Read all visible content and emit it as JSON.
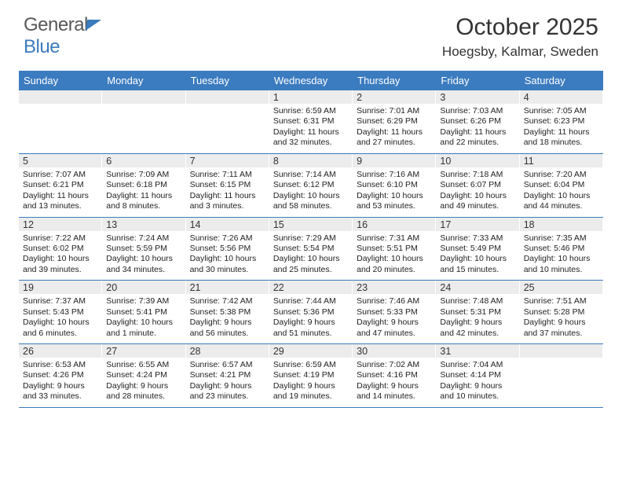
{
  "logo": {
    "text1": "General",
    "text2": "Blue"
  },
  "title": "October 2025",
  "location": "Hoegsby, Kalmar, Sweden",
  "colors": {
    "header_bg": "#3b7bbf",
    "daynum_bg": "#ececec",
    "page_bg": "#ffffff",
    "text": "#333333",
    "logo_gray": "#58585a",
    "logo_blue": "#3b7bbf"
  },
  "day_names": [
    "Sunday",
    "Monday",
    "Tuesday",
    "Wednesday",
    "Thursday",
    "Friday",
    "Saturday"
  ],
  "weeks": [
    [
      {
        "n": "",
        "lines": []
      },
      {
        "n": "",
        "lines": []
      },
      {
        "n": "",
        "lines": []
      },
      {
        "n": "1",
        "lines": [
          "Sunrise: 6:59 AM",
          "Sunset: 6:31 PM",
          "Daylight: 11 hours",
          "and 32 minutes."
        ]
      },
      {
        "n": "2",
        "lines": [
          "Sunrise: 7:01 AM",
          "Sunset: 6:29 PM",
          "Daylight: 11 hours",
          "and 27 minutes."
        ]
      },
      {
        "n": "3",
        "lines": [
          "Sunrise: 7:03 AM",
          "Sunset: 6:26 PM",
          "Daylight: 11 hours",
          "and 22 minutes."
        ]
      },
      {
        "n": "4",
        "lines": [
          "Sunrise: 7:05 AM",
          "Sunset: 6:23 PM",
          "Daylight: 11 hours",
          "and 18 minutes."
        ]
      }
    ],
    [
      {
        "n": "5",
        "lines": [
          "Sunrise: 7:07 AM",
          "Sunset: 6:21 PM",
          "Daylight: 11 hours",
          "and 13 minutes."
        ]
      },
      {
        "n": "6",
        "lines": [
          "Sunrise: 7:09 AM",
          "Sunset: 6:18 PM",
          "Daylight: 11 hours",
          "and 8 minutes."
        ]
      },
      {
        "n": "7",
        "lines": [
          "Sunrise: 7:11 AM",
          "Sunset: 6:15 PM",
          "Daylight: 11 hours",
          "and 3 minutes."
        ]
      },
      {
        "n": "8",
        "lines": [
          "Sunrise: 7:14 AM",
          "Sunset: 6:12 PM",
          "Daylight: 10 hours",
          "and 58 minutes."
        ]
      },
      {
        "n": "9",
        "lines": [
          "Sunrise: 7:16 AM",
          "Sunset: 6:10 PM",
          "Daylight: 10 hours",
          "and 53 minutes."
        ]
      },
      {
        "n": "10",
        "lines": [
          "Sunrise: 7:18 AM",
          "Sunset: 6:07 PM",
          "Daylight: 10 hours",
          "and 49 minutes."
        ]
      },
      {
        "n": "11",
        "lines": [
          "Sunrise: 7:20 AM",
          "Sunset: 6:04 PM",
          "Daylight: 10 hours",
          "and 44 minutes."
        ]
      }
    ],
    [
      {
        "n": "12",
        "lines": [
          "Sunrise: 7:22 AM",
          "Sunset: 6:02 PM",
          "Daylight: 10 hours",
          "and 39 minutes."
        ]
      },
      {
        "n": "13",
        "lines": [
          "Sunrise: 7:24 AM",
          "Sunset: 5:59 PM",
          "Daylight: 10 hours",
          "and 34 minutes."
        ]
      },
      {
        "n": "14",
        "lines": [
          "Sunrise: 7:26 AM",
          "Sunset: 5:56 PM",
          "Daylight: 10 hours",
          "and 30 minutes."
        ]
      },
      {
        "n": "15",
        "lines": [
          "Sunrise: 7:29 AM",
          "Sunset: 5:54 PM",
          "Daylight: 10 hours",
          "and 25 minutes."
        ]
      },
      {
        "n": "16",
        "lines": [
          "Sunrise: 7:31 AM",
          "Sunset: 5:51 PM",
          "Daylight: 10 hours",
          "and 20 minutes."
        ]
      },
      {
        "n": "17",
        "lines": [
          "Sunrise: 7:33 AM",
          "Sunset: 5:49 PM",
          "Daylight: 10 hours",
          "and 15 minutes."
        ]
      },
      {
        "n": "18",
        "lines": [
          "Sunrise: 7:35 AM",
          "Sunset: 5:46 PM",
          "Daylight: 10 hours",
          "and 10 minutes."
        ]
      }
    ],
    [
      {
        "n": "19",
        "lines": [
          "Sunrise: 7:37 AM",
          "Sunset: 5:43 PM",
          "Daylight: 10 hours",
          "and 6 minutes."
        ]
      },
      {
        "n": "20",
        "lines": [
          "Sunrise: 7:39 AM",
          "Sunset: 5:41 PM",
          "Daylight: 10 hours",
          "and 1 minute."
        ]
      },
      {
        "n": "21",
        "lines": [
          "Sunrise: 7:42 AM",
          "Sunset: 5:38 PM",
          "Daylight: 9 hours",
          "and 56 minutes."
        ]
      },
      {
        "n": "22",
        "lines": [
          "Sunrise: 7:44 AM",
          "Sunset: 5:36 PM",
          "Daylight: 9 hours",
          "and 51 minutes."
        ]
      },
      {
        "n": "23",
        "lines": [
          "Sunrise: 7:46 AM",
          "Sunset: 5:33 PM",
          "Daylight: 9 hours",
          "and 47 minutes."
        ]
      },
      {
        "n": "24",
        "lines": [
          "Sunrise: 7:48 AM",
          "Sunset: 5:31 PM",
          "Daylight: 9 hours",
          "and 42 minutes."
        ]
      },
      {
        "n": "25",
        "lines": [
          "Sunrise: 7:51 AM",
          "Sunset: 5:28 PM",
          "Daylight: 9 hours",
          "and 37 minutes."
        ]
      }
    ],
    [
      {
        "n": "26",
        "lines": [
          "Sunrise: 6:53 AM",
          "Sunset: 4:26 PM",
          "Daylight: 9 hours",
          "and 33 minutes."
        ]
      },
      {
        "n": "27",
        "lines": [
          "Sunrise: 6:55 AM",
          "Sunset: 4:24 PM",
          "Daylight: 9 hours",
          "and 28 minutes."
        ]
      },
      {
        "n": "28",
        "lines": [
          "Sunrise: 6:57 AM",
          "Sunset: 4:21 PM",
          "Daylight: 9 hours",
          "and 23 minutes."
        ]
      },
      {
        "n": "29",
        "lines": [
          "Sunrise: 6:59 AM",
          "Sunset: 4:19 PM",
          "Daylight: 9 hours",
          "and 19 minutes."
        ]
      },
      {
        "n": "30",
        "lines": [
          "Sunrise: 7:02 AM",
          "Sunset: 4:16 PM",
          "Daylight: 9 hours",
          "and 14 minutes."
        ]
      },
      {
        "n": "31",
        "lines": [
          "Sunrise: 7:04 AM",
          "Sunset: 4:14 PM",
          "Daylight: 9 hours",
          "and 10 minutes."
        ]
      },
      {
        "n": "",
        "lines": []
      }
    ]
  ]
}
